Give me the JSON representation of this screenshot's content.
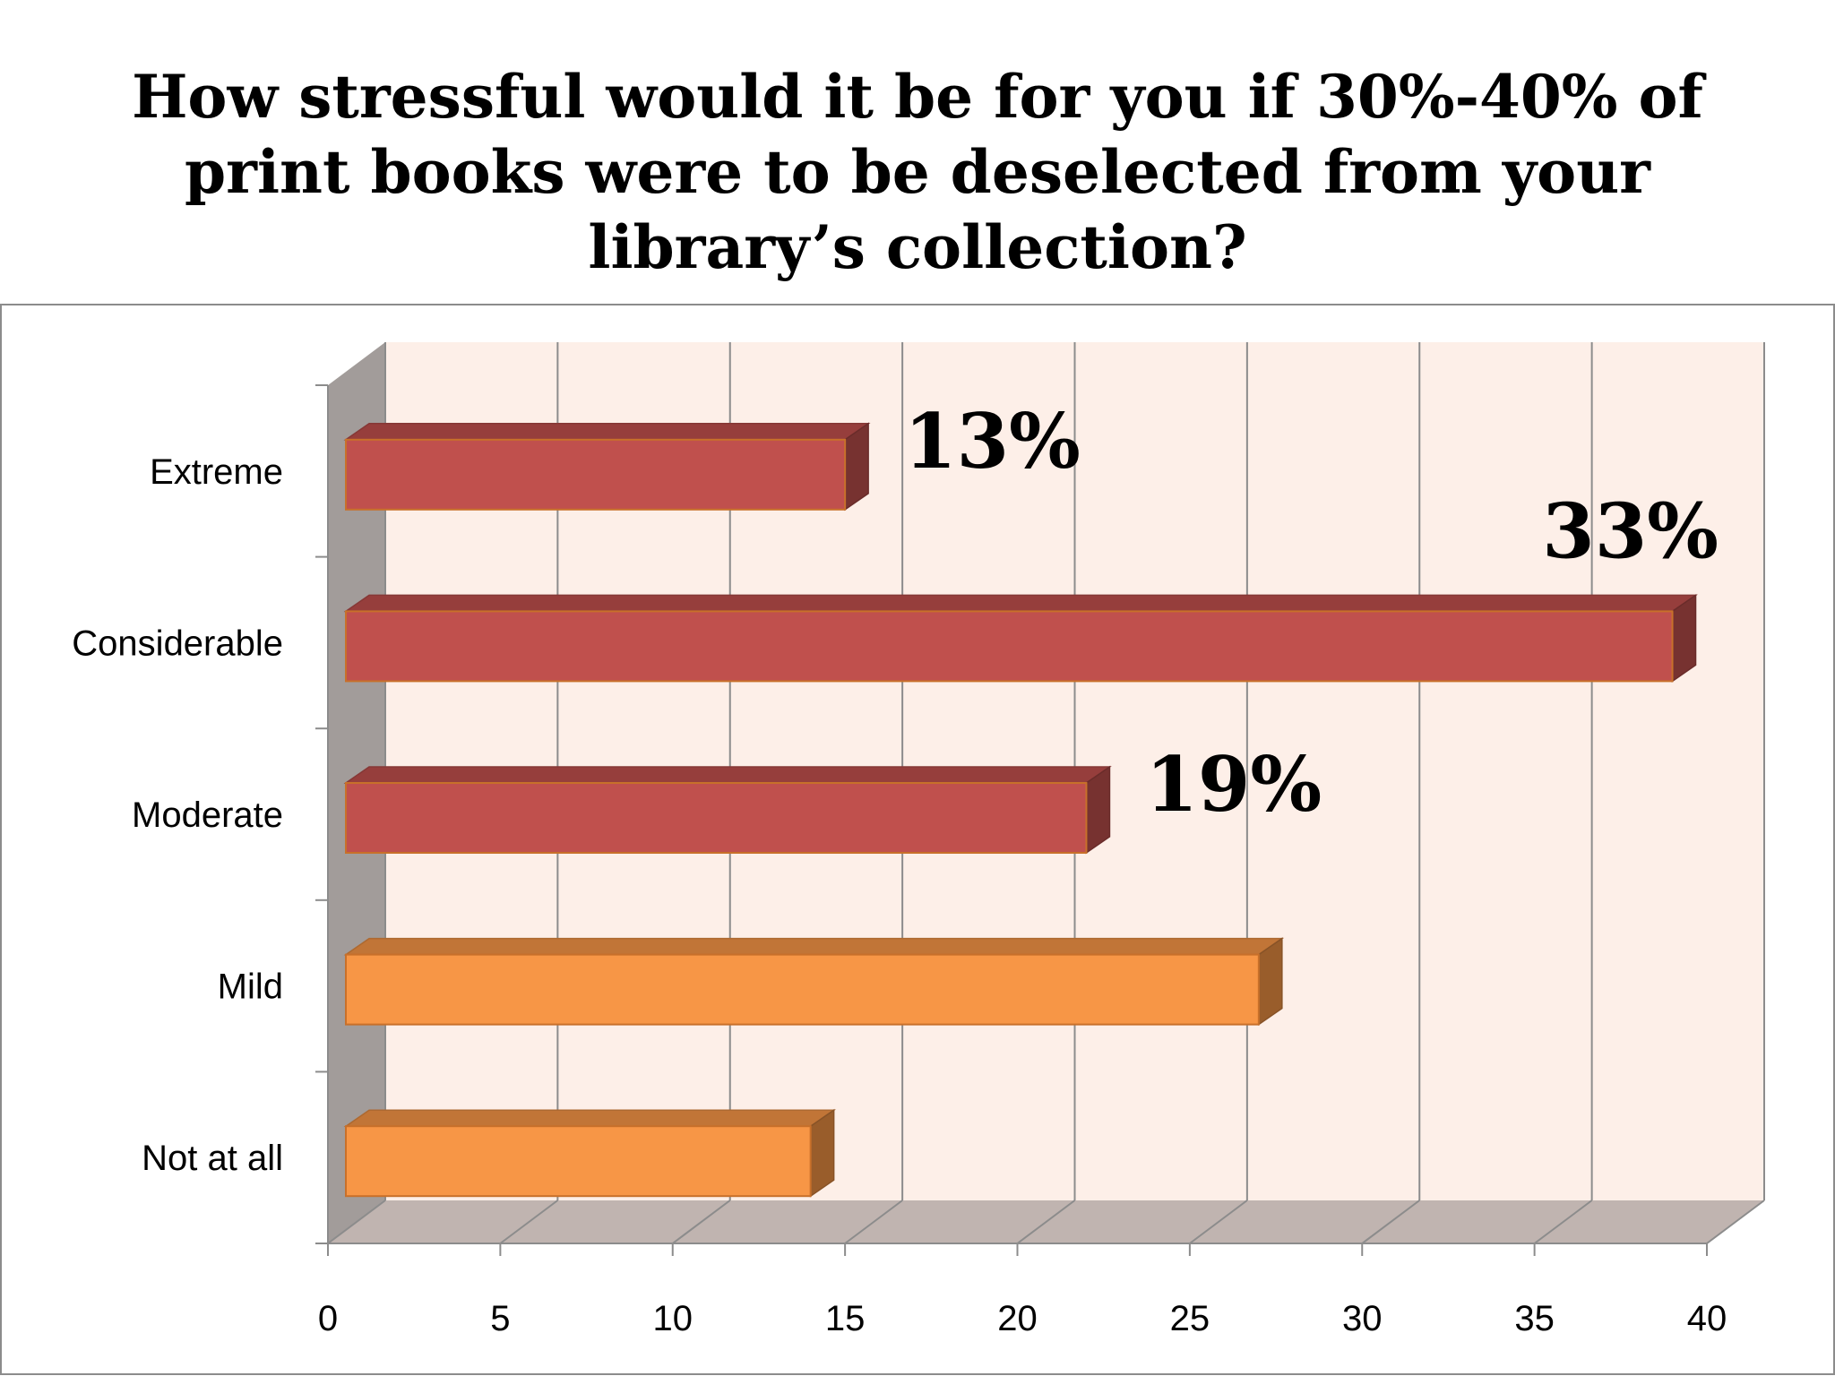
{
  "chart_data": {
    "type": "bar",
    "orientation": "horizontal",
    "title": "How stressful would it be for you if 30%-40% of print books were to be deselected from your library’s collection?",
    "title_lines": [
      "How stressful would it be for you if 30%-40% of",
      "print books were to be deselected from your",
      "library’s collection?"
    ],
    "categories": [
      "Extreme",
      "Considerable",
      "Moderate",
      "Mild",
      "Not at all"
    ],
    "values": [
      15,
      39,
      22,
      27,
      14
    ],
    "bar_colors": [
      "#c0504d",
      "#c0504d",
      "#c0504d",
      "#f79646",
      "#f79646"
    ],
    "data_labels": [
      "13%",
      "33%",
      "19%",
      "",
      ""
    ],
    "xlim": [
      0,
      40
    ],
    "xticks": [
      0,
      5,
      10,
      15,
      20,
      25,
      30,
      35,
      40
    ],
    "xlabel": "",
    "ylabel": "",
    "grid": true,
    "legend": "none"
  }
}
